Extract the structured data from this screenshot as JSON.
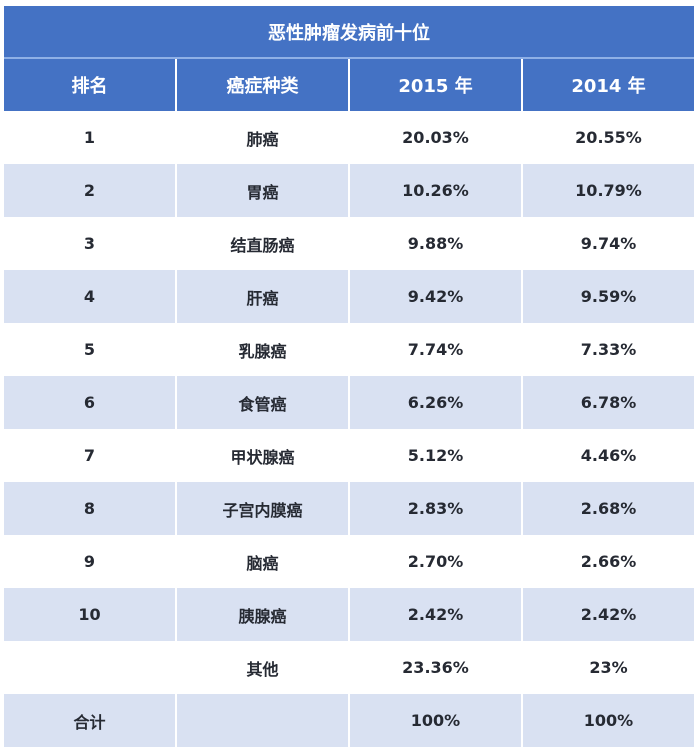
{
  "title": "恶性肿瘤发病前十位",
  "headers": [
    "排名",
    "癌症种类",
    "2015 年",
    "2014 年"
  ],
  "rows": [
    {
      "rank": "1",
      "type": "肺癌",
      "y2015": "20.03%",
      "y2014": "20.55%"
    },
    {
      "rank": "2",
      "type": "胃癌",
      "y2015": "10.26%",
      "y2014": "10.79%"
    },
    {
      "rank": "3",
      "type": "结直肠癌",
      "y2015": "9.88%",
      "y2014": "9.74%"
    },
    {
      "rank": "4",
      "type": "肝癌",
      "y2015": "9.42%",
      "y2014": "9.59%"
    },
    {
      "rank": "5",
      "type": "乳腺癌",
      "y2015": "7.74%",
      "y2014": "7.33%"
    },
    {
      "rank": "6",
      "type": "食管癌",
      "y2015": "6.26%",
      "y2014": "6.78%"
    },
    {
      "rank": "7",
      "type": "甲状腺癌",
      "y2015": "5.12%",
      "y2014": "4.46%"
    },
    {
      "rank": "8",
      "type": "子宫内膜癌",
      "y2015": "2.83%",
      "y2014": "2.68%"
    },
    {
      "rank": "9",
      "type": "脑癌",
      "y2015": "2.70%",
      "y2014": "2.66%"
    },
    {
      "rank": "10",
      "type": "胰腺癌",
      "y2015": "2.42%",
      "y2014": "2.42%"
    },
    {
      "rank": "",
      "type": "其他",
      "y2015": "23.36%",
      "y2014": "23%"
    },
    {
      "rank": "合计",
      "type": "",
      "y2015": "100%",
      "y2014": "100%"
    }
  ],
  "colors": {
    "header": "#4472c4",
    "band": "#d9e1f2"
  }
}
